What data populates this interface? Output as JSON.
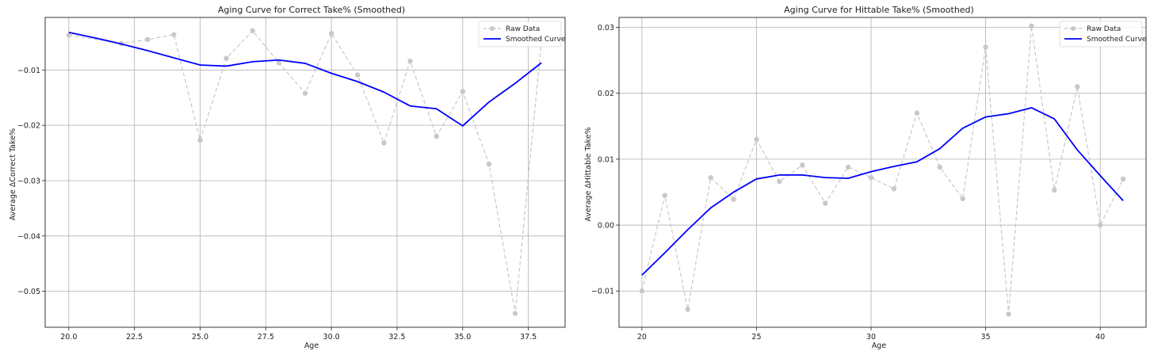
{
  "chart_data": [
    {
      "type": "line",
      "title": "Aging Curve for Correct Take% (Smoothed)",
      "xlabel": "Age",
      "ylabel": "Average ΔCorrect Take%",
      "xlim": [
        19.1,
        38.9
      ],
      "ylim": [
        -0.0565,
        -0.0005
      ],
      "xticks": [
        20.0,
        22.5,
        25.0,
        27.5,
        30.0,
        32.5,
        35.0,
        37.5
      ],
      "xtick_labels": [
        "20.0",
        "22.5",
        "25.0",
        "27.5",
        "30.0",
        "32.5",
        "35.0",
        "37.5"
      ],
      "yticks": [
        -0.01,
        -0.02,
        -0.03,
        -0.04,
        -0.05
      ],
      "ytick_labels": [
        "−0.01",
        "−0.02",
        "−0.03",
        "−0.04",
        "−0.05"
      ],
      "grid": true,
      "legend_position": "top-right",
      "series": [
        {
          "name": "Raw Data",
          "style": "dashed-markers",
          "color": "#c8c8c8",
          "x": [
            20,
            22,
            23,
            24,
            25,
            26,
            27,
            28,
            29,
            30,
            31,
            32,
            33,
            34,
            35,
            36,
            37,
            38
          ],
          "y": [
            -0.0037,
            -0.0052,
            -0.0045,
            -0.0036,
            -0.0227,
            -0.0079,
            -0.0029,
            -0.0087,
            -0.0142,
            -0.0034,
            -0.0109,
            -0.0232,
            -0.0084,
            -0.022,
            -0.0139,
            -0.027,
            -0.054,
            -0.0047
          ]
        },
        {
          "name": "Smoothed Curve",
          "style": "solid",
          "color": "#0000ff",
          "x": [
            20,
            21,
            22,
            23,
            24,
            25,
            26,
            27,
            28,
            29,
            30,
            31,
            32,
            33,
            34,
            35,
            36,
            37,
            38
          ],
          "y": [
            -0.0032,
            -0.0042,
            -0.0053,
            -0.0065,
            -0.0078,
            -0.0091,
            -0.0093,
            -0.0085,
            -0.0082,
            -0.0088,
            -0.0106,
            -0.0121,
            -0.014,
            -0.0165,
            -0.017,
            -0.0201,
            -0.0158,
            -0.0124,
            -0.0087
          ]
        }
      ]
    },
    {
      "type": "line",
      "title": "Aging Curve for Hittable Take% (Smoothed)",
      "xlabel": "Age",
      "ylabel": "Average ΔHittable Take%",
      "xlim": [
        19.0,
        42.0
      ],
      "ylim": [
        -0.0155,
        0.0315
      ],
      "xticks": [
        20,
        25,
        30,
        35,
        40
      ],
      "xtick_labels": [
        "20",
        "25",
        "30",
        "35",
        "40"
      ],
      "yticks": [
        -0.01,
        0.0,
        0.01,
        0.02,
        0.03
      ],
      "ytick_labels": [
        "−0.01",
        "0.00",
        "0.01",
        "0.02",
        "0.03"
      ],
      "grid": true,
      "legend_position": "top-right",
      "series": [
        {
          "name": "Raw Data",
          "style": "dashed-markers",
          "color": "#c8c8c8",
          "x": [
            20,
            21,
            22,
            23,
            24,
            25,
            26,
            27,
            28,
            29,
            30,
            31,
            32,
            33,
            34,
            35,
            36,
            37,
            38,
            39,
            40,
            41
          ],
          "y": [
            -0.01,
            0.0045,
            -0.0128,
            0.0072,
            0.0039,
            0.013,
            0.0066,
            0.0091,
            0.0033,
            0.0088,
            0.0072,
            0.0055,
            0.017,
            0.0088,
            0.004,
            0.027,
            -0.0135,
            0.0302,
            0.0053,
            0.021,
            0.0,
            0.007
          ]
        },
        {
          "name": "Smoothed Curve",
          "style": "solid",
          "color": "#0000ff",
          "x": [
            20,
            21,
            22,
            23,
            24,
            25,
            26,
            27,
            28,
            29,
            30,
            31,
            32,
            33,
            34,
            35,
            36,
            37,
            38,
            39,
            40,
            41
          ],
          "y": [
            -0.0076,
            -0.0042,
            -0.0007,
            0.0026,
            0.005,
            0.007,
            0.0076,
            0.0076,
            0.0072,
            0.0071,
            0.0081,
            0.0089,
            0.0096,
            0.0116,
            0.0147,
            0.0164,
            0.0169,
            0.0178,
            0.0161,
            0.0114,
            0.0075,
            0.0037
          ]
        }
      ]
    }
  ]
}
